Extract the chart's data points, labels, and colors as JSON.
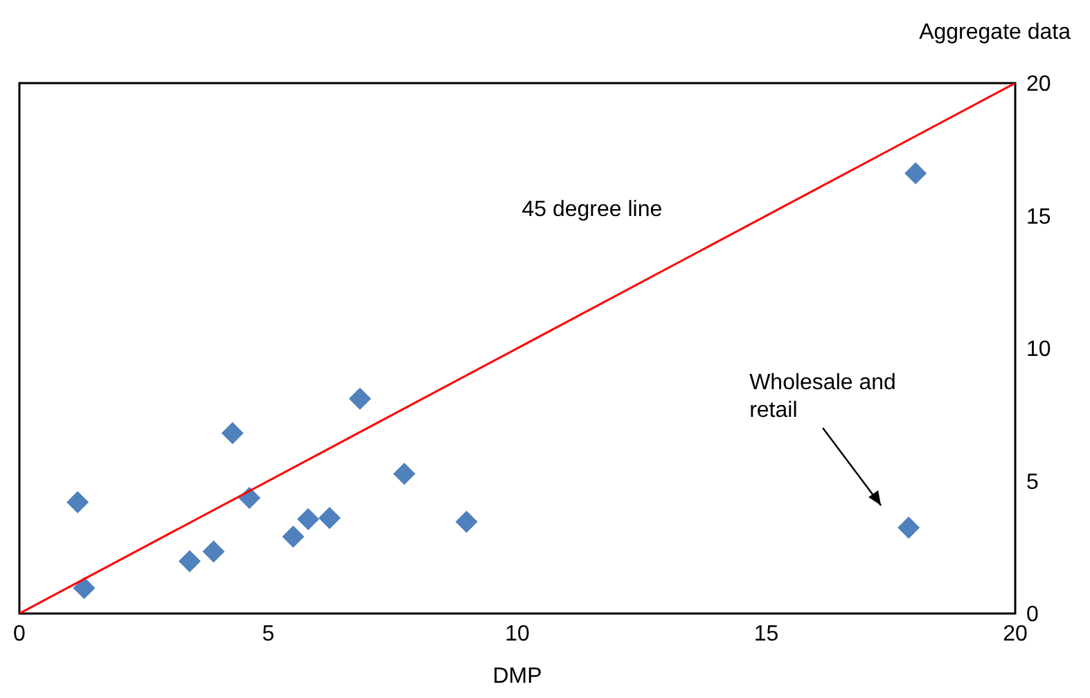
{
  "chart_data": {
    "type": "scatter",
    "xlabel": "DMP",
    "y2label": "Aggregate data",
    "x": [
      1.17,
      1.3,
      3.42,
      3.9,
      4.28,
      4.62,
      5.5,
      5.8,
      6.23,
      6.84,
      7.73,
      8.98,
      18.0,
      17.86
    ],
    "series": [
      {
        "color": "#4f81bd",
        "marker": "diamond",
        "values": [
          4.2,
          0.96,
          1.97,
          2.34,
          6.8,
          4.36,
          2.9,
          3.56,
          3.6,
          8.1,
          5.27,
          3.46,
          16.6,
          3.24
        ]
      },
      {
        "type": "line",
        "color": "#ff0000",
        "marker": "none",
        "x": [
          0,
          20
        ],
        "values": [
          0,
          20
        ]
      }
    ],
    "xlim": [
      0,
      20
    ],
    "xticks": [
      0,
      5,
      10,
      15,
      20
    ],
    "ylim": [
      0,
      20
    ],
    "yticks": [
      0,
      5,
      10,
      15,
      20
    ],
    "annotations": [
      "45 degree line",
      "Wholesale and retail"
    ]
  }
}
